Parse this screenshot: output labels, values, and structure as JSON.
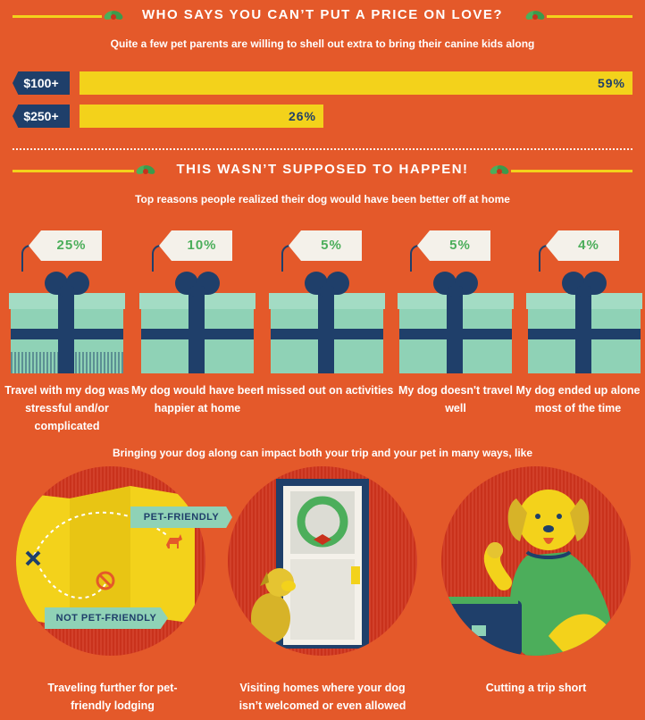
{
  "colors": {
    "background": "#e4592a",
    "accent_yellow": "#f3d21b",
    "navy": "#1f3f6a",
    "mint": "#8fd2b6",
    "green": "#4cae5b"
  },
  "section1": {
    "title": "WHO SAYS YOU CAN’T PUT A PRICE ON LOVE?",
    "subtitle": "Quite a few pet parents are willing to shell out extra to bring their canine kids along",
    "bars": [
      {
        "label": "$100+",
        "value": 59,
        "display": "59%"
      },
      {
        "label": "$250+",
        "value": 26,
        "display": "26%"
      }
    ]
  },
  "section2": {
    "title": "THIS WASN’T SUPPOSED TO HAPPEN!",
    "subtitle": "Top reasons people realized their dog would have been better off at home",
    "gifts": [
      {
        "value": "25%",
        "label": "Travel with my dog was stressful and/or complicated"
      },
      {
        "value": "10%",
        "label": "My dog would have been happier at home"
      },
      {
        "value": "5%",
        "label": "I missed out on activities"
      },
      {
        "value": "5%",
        "label": "My dog doesn't travel well"
      },
      {
        "value": "4%",
        "label": "My dog ended up alone most of the time"
      }
    ]
  },
  "section3": {
    "subtitle": "Bringing your dog along can impact both your trip and your pet in many ways, like",
    "map_labels": {
      "pet_friendly": "PET-FRIENDLY",
      "not_pet_friendly": "NOT PET-FRIENDLY"
    },
    "items": [
      {
        "label": "Traveling further for pet-friendly lodging",
        "icon": "map-icon"
      },
      {
        "label": "Visiting homes where your dog isn’t welcomed or even allowed",
        "icon": "door-icon"
      },
      {
        "label": "Cutting a trip short",
        "icon": "dog-suitcase-icon"
      }
    ]
  }
}
